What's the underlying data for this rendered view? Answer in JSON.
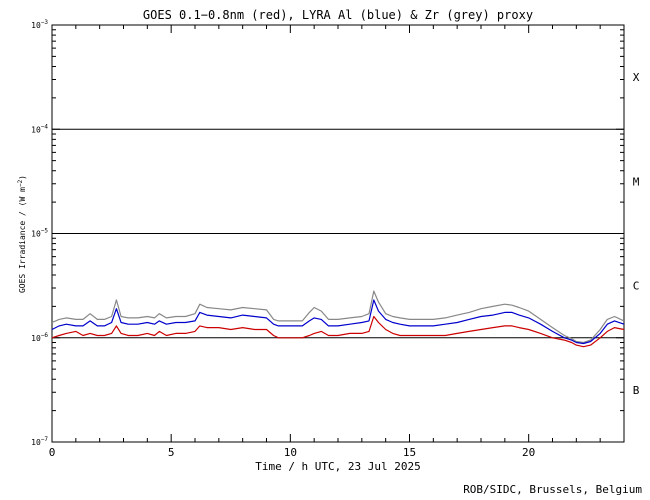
{
  "chart_data": {
    "type": "line",
    "title": "GOES 0.1−0.8nm (red), LYRA Al (blue) & Zr (grey) proxy",
    "xlabel": "Time / h UTC, 23 Jul 2025",
    "ylabel": "GOES Irradiance / (W m",
    "ylabel_sup": "−2",
    "ylabel_close": ")",
    "xlim": [
      0,
      24
    ],
    "ylim": [
      1e-07,
      0.001
    ],
    "yscale": "log",
    "x_ticks": [
      0,
      5,
      10,
      15,
      20
    ],
    "x_tick_labels": [
      "0",
      "5",
      "10",
      "15",
      "20"
    ],
    "y_tick_labels": [
      {
        "value": 0.001,
        "base": "10",
        "exp": "−3"
      },
      {
        "value": 0.0001,
        "base": "10",
        "exp": "−4"
      },
      {
        "value": 1e-05,
        "base": "10",
        "exp": "−5"
      },
      {
        "value": 1e-06,
        "base": "10",
        "exp": "−6"
      },
      {
        "value": 1e-07,
        "base": "10",
        "exp": "−7"
      }
    ],
    "flare_class_lines": [
      0.0001,
      1e-05,
      1e-06
    ],
    "flare_classes": [
      {
        "label": "X",
        "value": 0.000316
      },
      {
        "label": "M",
        "value": 3.16e-05
      },
      {
        "label": "C",
        "value": 3.16e-06
      },
      {
        "label": "B",
        "value": 3.16e-07
      }
    ],
    "series": [
      {
        "color": "#cc0000",
        "x": [
          0,
          0.3,
          0.6,
          1.0,
          1.3,
          1.6,
          1.9,
          2.2,
          2.5,
          2.7,
          2.9,
          3.2,
          3.6,
          4.0,
          4.3,
          4.5,
          4.8,
          5.2,
          5.6,
          6.0,
          6.2,
          6.5,
          7.0,
          7.5,
          8.0,
          8.5,
          9.0,
          9.3,
          9.5,
          10.0,
          10.5,
          10.8,
          11.0,
          11.3,
          11.6,
          12.0,
          12.5,
          13.0,
          13.3,
          13.5,
          13.7,
          14.0,
          14.3,
          14.6,
          15.0,
          15.5,
          16.0,
          16.5,
          17.0,
          17.5,
          18.0,
          18.5,
          19.0,
          19.3,
          19.6,
          20.0,
          20.5,
          21.0,
          21.5,
          21.8,
          22.0,
          22.3,
          22.6,
          23.0,
          23.3,
          23.6,
          24.0
        ],
        "y": [
          1e-06,
          1.05e-06,
          1.1e-06,
          1.15e-06,
          1.05e-06,
          1.1e-06,
          1.05e-06,
          1.05e-06,
          1.1e-06,
          1.3e-06,
          1.1e-06,
          1.05e-06,
          1.05e-06,
          1.1e-06,
          1.05e-06,
          1.15e-06,
          1.05e-06,
          1.1e-06,
          1.1e-06,
          1.15e-06,
          1.3e-06,
          1.25e-06,
          1.25e-06,
          1.2e-06,
          1.25e-06,
          1.2e-06,
          1.2e-06,
          1.05e-06,
          1e-06,
          1e-06,
          1e-06,
          1.05e-06,
          1.1e-06,
          1.15e-06,
          1.05e-06,
          1.05e-06,
          1.1e-06,
          1.1e-06,
          1.15e-06,
          1.6e-06,
          1.4e-06,
          1.2e-06,
          1.1e-06,
          1.05e-06,
          1.05e-06,
          1.05e-06,
          1.05e-06,
          1.05e-06,
          1.1e-06,
          1.15e-06,
          1.2e-06,
          1.25e-06,
          1.3e-06,
          1.3e-06,
          1.25e-06,
          1.2e-06,
          1.1e-06,
          1e-06,
          9.5e-07,
          9e-07,
          8.5e-07,
          8.2e-07,
          8.5e-07,
          1e-06,
          1.15e-06,
          1.25e-06,
          1.2e-06
        ]
      },
      {
        "color": "#0000cc",
        "x": [
          0,
          0.3,
          0.6,
          1.0,
          1.3,
          1.6,
          1.9,
          2.2,
          2.5,
          2.7,
          2.9,
          3.2,
          3.6,
          4.0,
          4.3,
          4.5,
          4.8,
          5.2,
          5.6,
          6.0,
          6.2,
          6.5,
          7.0,
          7.5,
          8.0,
          8.5,
          9.0,
          9.3,
          9.5,
          10.0,
          10.5,
          10.8,
          11.0,
          11.3,
          11.6,
          12.0,
          12.5,
          13.0,
          13.3,
          13.5,
          13.7,
          14.0,
          14.3,
          14.6,
          15.0,
          15.5,
          16.0,
          16.5,
          17.0,
          17.5,
          18.0,
          18.5,
          19.0,
          19.3,
          19.6,
          20.0,
          20.5,
          21.0,
          21.5,
          21.8,
          22.0,
          22.3,
          22.6,
          23.0,
          23.3,
          23.6,
          24.0
        ],
        "y": [
          1.2e-06,
          1.3e-06,
          1.35e-06,
          1.3e-06,
          1.3e-06,
          1.45e-06,
          1.3e-06,
          1.3e-06,
          1.4e-06,
          1.9e-06,
          1.4e-06,
          1.35e-06,
          1.35e-06,
          1.4e-06,
          1.35e-06,
          1.45e-06,
          1.35e-06,
          1.4e-06,
          1.4e-06,
          1.45e-06,
          1.75e-06,
          1.65e-06,
          1.6e-06,
          1.55e-06,
          1.65e-06,
          1.6e-06,
          1.55e-06,
          1.35e-06,
          1.3e-06,
          1.3e-06,
          1.3e-06,
          1.45e-06,
          1.55e-06,
          1.5e-06,
          1.3e-06,
          1.3e-06,
          1.35e-06,
          1.4e-06,
          1.45e-06,
          2.3e-06,
          1.8e-06,
          1.5e-06,
          1.4e-06,
          1.35e-06,
          1.3e-06,
          1.3e-06,
          1.3e-06,
          1.35e-06,
          1.4e-06,
          1.5e-06,
          1.6e-06,
          1.65e-06,
          1.75e-06,
          1.75e-06,
          1.65e-06,
          1.55e-06,
          1.35e-06,
          1.15e-06,
          1e-06,
          9.5e-07,
          9e-07,
          8.8e-07,
          9.2e-07,
          1.1e-06,
          1.35e-06,
          1.45e-06,
          1.35e-06
        ]
      },
      {
        "color": "#888888",
        "x": [
          0,
          0.3,
          0.6,
          1.0,
          1.3,
          1.6,
          1.9,
          2.2,
          2.5,
          2.7,
          2.9,
          3.2,
          3.6,
          4.0,
          4.3,
          4.5,
          4.8,
          5.2,
          5.6,
          6.0,
          6.2,
          6.5,
          7.0,
          7.5,
          8.0,
          8.5,
          9.0,
          9.3,
          9.5,
          10.0,
          10.5,
          10.8,
          11.0,
          11.3,
          11.6,
          12.0,
          12.5,
          13.0,
          13.3,
          13.5,
          13.7,
          14.0,
          14.3,
          14.6,
          15.0,
          15.5,
          16.0,
          16.5,
          17.0,
          17.5,
          18.0,
          18.5,
          19.0,
          19.3,
          19.6,
          20.0,
          20.5,
          21.0,
          21.5,
          21.8,
          22.0,
          22.3,
          22.6,
          23.0,
          23.3,
          23.6,
          24.0
        ],
        "y": [
          1.4e-06,
          1.5e-06,
          1.55e-06,
          1.5e-06,
          1.5e-06,
          1.7e-06,
          1.5e-06,
          1.5e-06,
          1.6e-06,
          2.3e-06,
          1.6e-06,
          1.55e-06,
          1.55e-06,
          1.6e-06,
          1.55e-06,
          1.7e-06,
          1.55e-06,
          1.6e-06,
          1.6e-06,
          1.7e-06,
          2.1e-06,
          1.95e-06,
          1.9e-06,
          1.85e-06,
          1.95e-06,
          1.9e-06,
          1.85e-06,
          1.5e-06,
          1.45e-06,
          1.45e-06,
          1.45e-06,
          1.75e-06,
          1.95e-06,
          1.8e-06,
          1.5e-06,
          1.5e-06,
          1.55e-06,
          1.6e-06,
          1.7e-06,
          2.8e-06,
          2.2e-06,
          1.7e-06,
          1.6e-06,
          1.55e-06,
          1.5e-06,
          1.5e-06,
          1.5e-06,
          1.55e-06,
          1.65e-06,
          1.75e-06,
          1.9e-06,
          2e-06,
          2.1e-06,
          2.05e-06,
          1.95e-06,
          1.8e-06,
          1.5e-06,
          1.25e-06,
          1.05e-06,
          9.8e-07,
          9.2e-07,
          9e-07,
          9.5e-07,
          1.2e-06,
          1.5e-06,
          1.6e-06,
          1.45e-06
        ]
      }
    ]
  },
  "credit": "ROB/SIDC, Brussels, Belgium"
}
